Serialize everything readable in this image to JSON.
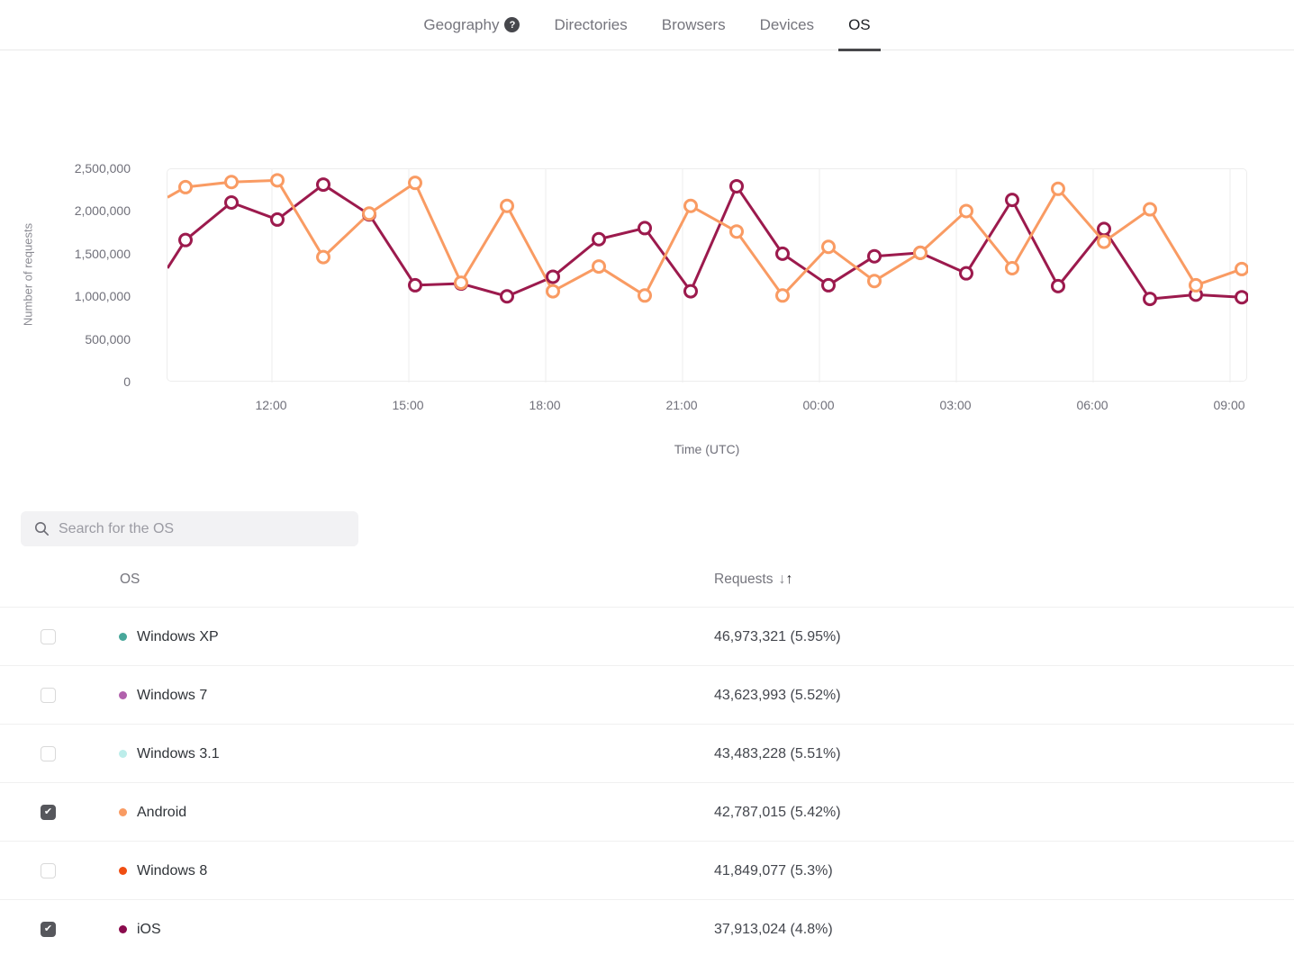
{
  "tabs": {
    "help_glyph": "?",
    "items": [
      {
        "label": "Geography",
        "help": true,
        "active": false
      },
      {
        "label": "Directories",
        "help": false,
        "active": false
      },
      {
        "label": "Browsers",
        "help": false,
        "active": false
      },
      {
        "label": "Devices",
        "help": false,
        "active": false
      },
      {
        "label": "OS",
        "help": false,
        "active": true
      }
    ]
  },
  "chart_data": {
    "type": "line",
    "xlabel": "Time (UTC)",
    "ylabel": "Number of requests",
    "ylim": [
      0,
      2500000
    ],
    "grid": "vertical",
    "legend": "none",
    "y_tick_labels": [
      "2,500,000",
      "2,000,000",
      "1,500,000",
      "1,000,000",
      "500,000",
      "0"
    ],
    "x_tick_labels": [
      "12:00",
      "15:00",
      "18:00",
      "21:00",
      "00:00",
      "03:00",
      "06:00",
      "09:00"
    ],
    "x": [
      "10:00",
      "11:00",
      "12:00",
      "13:00",
      "14:00",
      "15:00",
      "16:00",
      "17:00",
      "18:00",
      "19:00",
      "20:00",
      "21:00",
      "22:00",
      "23:00",
      "00:00",
      "01:00",
      "02:00",
      "03:00",
      "04:00",
      "05:00",
      "06:00",
      "07:00",
      "08:00",
      "09:00"
    ],
    "series": [
      {
        "name": "Android",
        "color": "#F99B63",
        "values": [
          2290000,
          2350000,
          2370000,
          1470000,
          1980000,
          2340000,
          1170000,
          2070000,
          1070000,
          1360000,
          1020000,
          2070000,
          1770000,
          1020000,
          1590000,
          1190000,
          1520000,
          2010000,
          1340000,
          2270000,
          1650000,
          2030000,
          1140000,
          1330000
        ]
      },
      {
        "name": "iOS",
        "color": "#9C1A4D",
        "values": [
          1670000,
          2110000,
          1910000,
          2320000,
          1970000,
          1140000,
          1160000,
          1010000,
          1240000,
          1680000,
          1810000,
          1070000,
          2300000,
          1510000,
          1140000,
          1480000,
          1520000,
          1280000,
          2140000,
          1130000,
          1800000,
          980000,
          1030000,
          1000000
        ]
      }
    ],
    "edge_lead": {
      "Android": 2170000,
      "iOS": 1340000
    }
  },
  "search": {
    "placeholder": "Search for the OS"
  },
  "table": {
    "header": {
      "os": "OS",
      "requests": "Requests",
      "sort_desc": "↓",
      "sort_asc": "↑"
    },
    "rows": [
      {
        "name": "Windows XP",
        "checked": false,
        "color": "#48A79A",
        "requests": "46,973,321 (5.95%)"
      },
      {
        "name": "Windows 7",
        "checked": false,
        "color": "#B161AC",
        "requests": "43,623,993 (5.52%)"
      },
      {
        "name": "Windows 3.1",
        "checked": false,
        "color": "#BCEDEA",
        "requests": "43,483,228 (5.51%)"
      },
      {
        "name": "Android",
        "checked": true,
        "color": "#F99B63",
        "requests": "42,787,015 (5.42%)"
      },
      {
        "name": "Windows 8",
        "checked": false,
        "color": "#F04E12",
        "requests": "41,849,077 (5.3%)"
      },
      {
        "name": "iOS",
        "checked": true,
        "color": "#8A0B4D",
        "requests": "37,913,024 (4.8%)"
      }
    ]
  }
}
